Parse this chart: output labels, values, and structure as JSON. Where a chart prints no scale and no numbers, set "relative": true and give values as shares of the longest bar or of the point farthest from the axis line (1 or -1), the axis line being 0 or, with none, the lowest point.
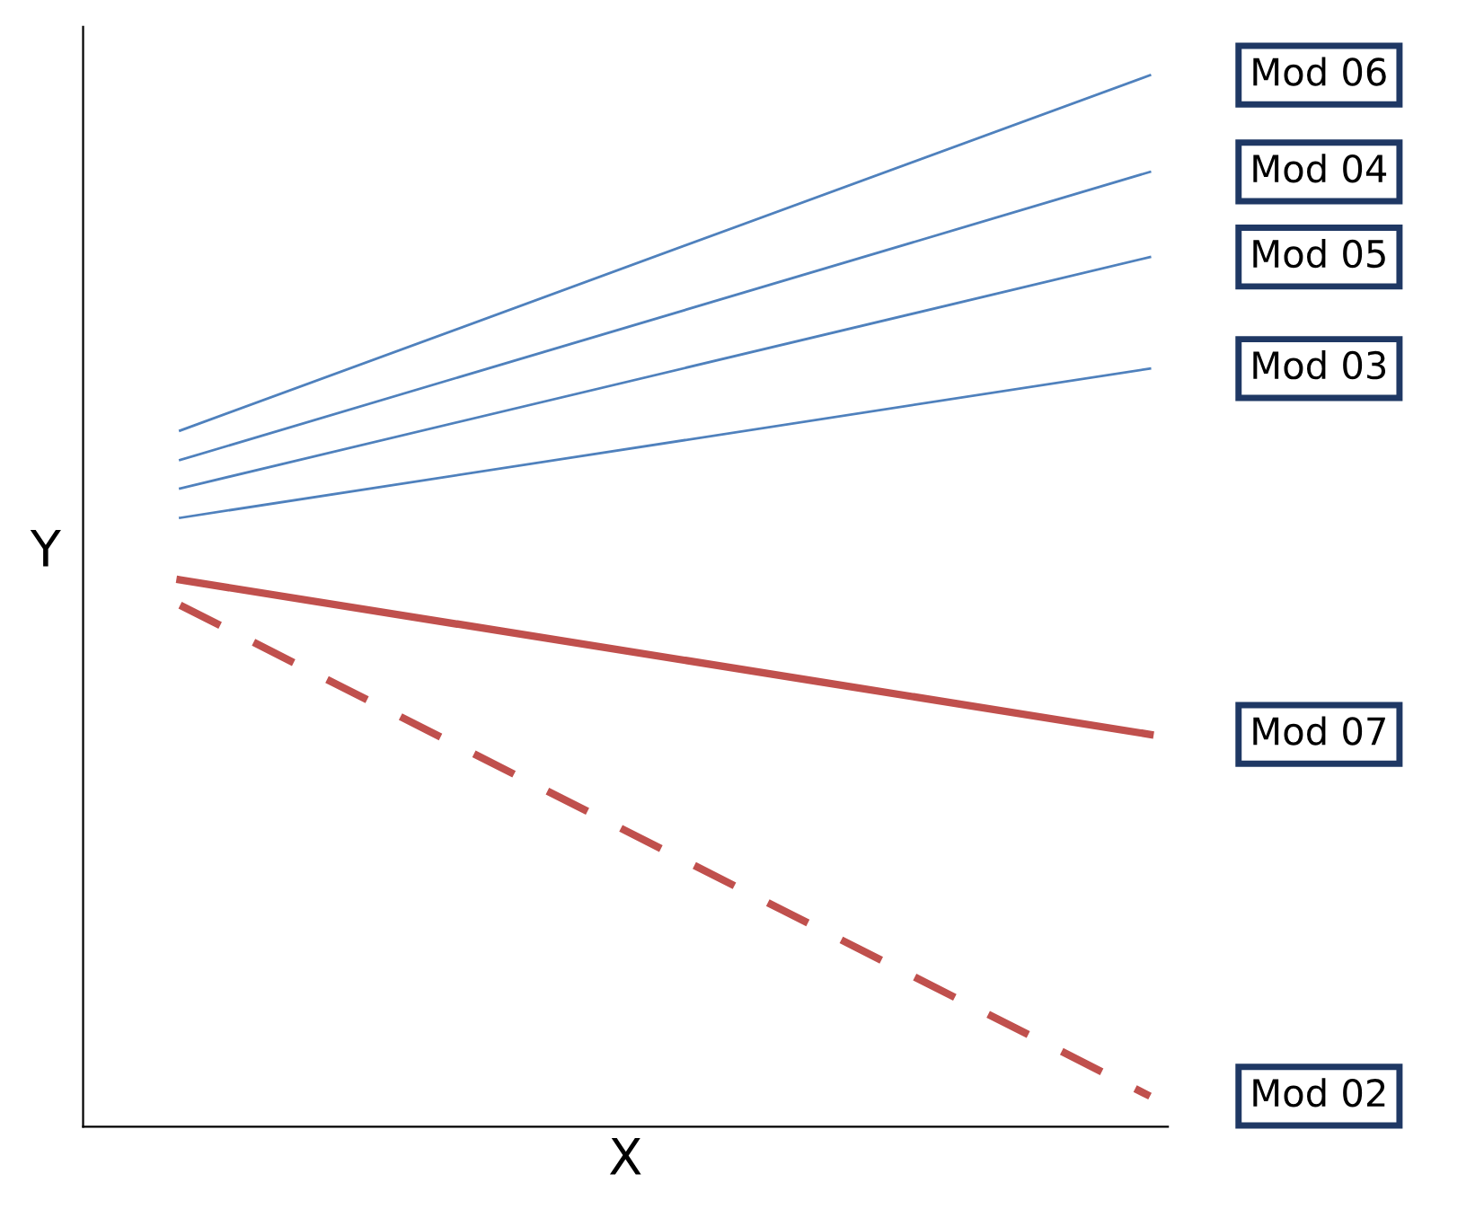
{
  "chart_data": {
    "type": "line",
    "relative": true,
    "xlabel": "X",
    "ylabel": "Y",
    "categories": [
      null,
      null
    ],
    "marker": "none",
    "series": [
      {
        "name": "Mod 06",
        "color": "#4f81bd",
        "line_style": "solid",
        "values": [
          0.662,
          1.0
        ]
      },
      {
        "name": "Mod 04",
        "color": "#4f81bd",
        "line_style": "solid",
        "values": [
          0.634,
          0.908
        ]
      },
      {
        "name": "Mod 05",
        "color": "#4f81bd",
        "line_style": "solid",
        "values": [
          0.607,
          0.827
        ]
      },
      {
        "name": "Mod 03",
        "color": "#4f81bd",
        "line_style": "solid",
        "values": [
          0.579,
          0.721
        ]
      },
      {
        "name": "Mod 07",
        "color": "#c0504d",
        "line_style": "solid",
        "values": [
          0.52,
          0.373
        ]
      },
      {
        "name": "Mod 02",
        "color": "#c0504d",
        "line_style": "dashed",
        "values": [
          0.496,
          0.029
        ]
      }
    ]
  }
}
